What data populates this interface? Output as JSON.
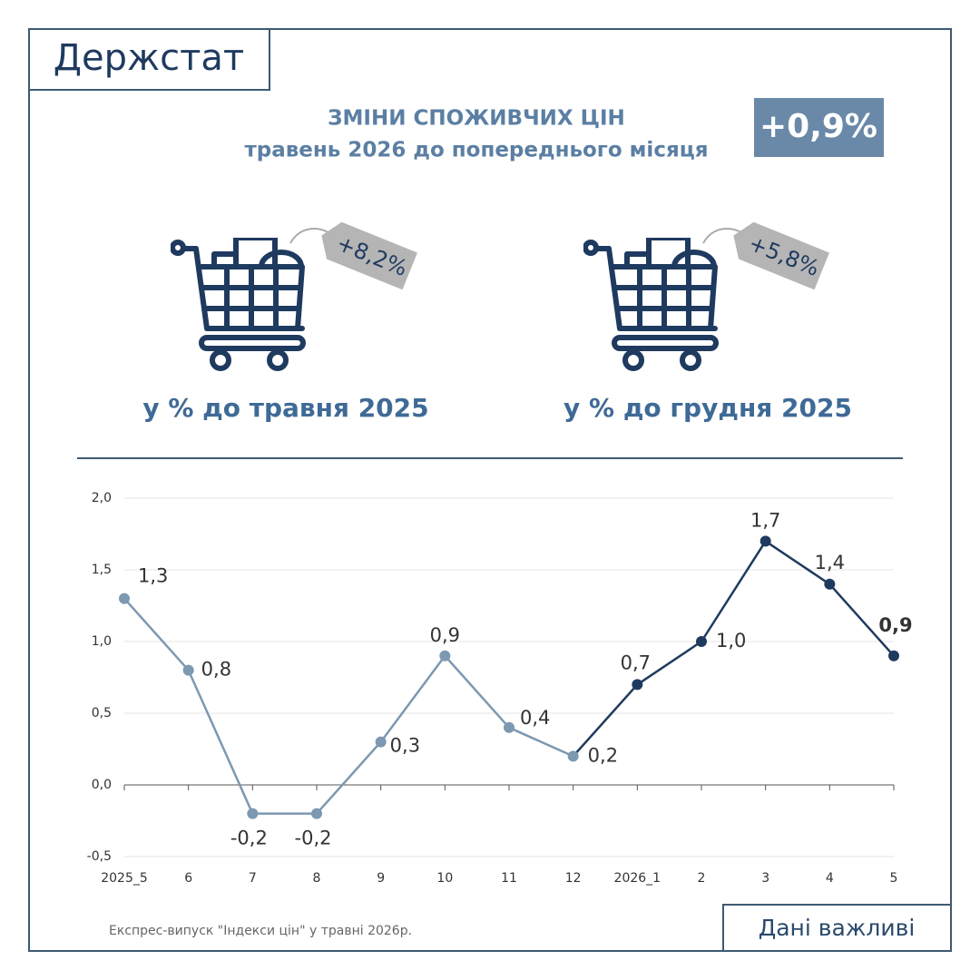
{
  "header": {
    "logo": "Держстат",
    "title": "ЗМІНИ СПОЖИВЧИХ ЦІН",
    "subtitle": "травень 2026 до попереднього місяця",
    "badge": "+0,9%"
  },
  "cards": [
    {
      "tag": "+8,2%",
      "caption": "у % до травня 2025"
    },
    {
      "tag": "+5,8%",
      "caption": "у % до грудня 2025"
    }
  ],
  "footer": {
    "source": "Експрес-випуск \"Індекси цін\" у травні 2026р.",
    "button": "Дані важливі"
  },
  "chart_data": {
    "type": "line",
    "categories": [
      "2025_5",
      "6",
      "7",
      "8",
      "9",
      "10",
      "11",
      "12",
      "2026_1",
      "2",
      "3",
      "4",
      "5"
    ],
    "values": [
      1.3,
      0.8,
      -0.2,
      -0.2,
      0.3,
      0.9,
      0.4,
      0.2,
      0.7,
      1.0,
      1.7,
      1.4,
      0.9
    ],
    "value_labels": [
      "1,3",
      "0,8",
      "-0,2",
      "-0,2",
      "0,3",
      "0,9",
      "0,4",
      "0,2",
      "0,7",
      "1,0",
      "1,7",
      "1,4",
      "0,9"
    ],
    "colors": [
      "#7d98b1",
      "#7d98b1",
      "#7d98b1",
      "#7d98b1",
      "#7d98b1",
      "#7d98b1",
      "#7d98b1",
      "#7d98b1",
      "#1f3a5f",
      "#1f3a5f",
      "#1f3a5f",
      "#1f3a5f",
      "#1f3a5f"
    ],
    "ylim": [
      -0.5,
      2.0
    ],
    "yticks": [
      {
        "value": -0.5,
        "label": "-0,5"
      },
      {
        "value": 0,
        "label": "0,0"
      },
      {
        "value": 0.5,
        "label": "0,5"
      },
      {
        "value": 1,
        "label": "1,0"
      },
      {
        "value": 1.5,
        "label": "1,5"
      },
      {
        "value": 2,
        "label": "2,0"
      }
    ],
    "grid": true
  }
}
